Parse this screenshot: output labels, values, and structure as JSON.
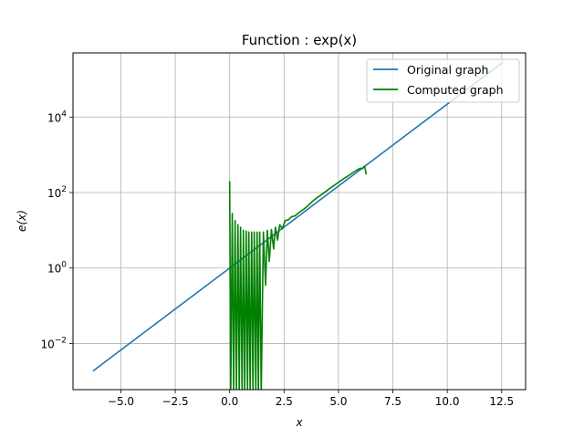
{
  "chart_data": {
    "type": "line",
    "title": "Function : exp(x)",
    "xlabel": "x",
    "ylabel": "e(x)",
    "xlim": [
      -7.2,
      13.6
    ],
    "ylim": [
      0.0006,
      500000
    ],
    "yscale": "log",
    "grid": true,
    "legend_position": "top-right",
    "x_ticks": [
      -5.0,
      -2.5,
      0.0,
      2.5,
      5.0,
      7.5,
      10.0,
      12.5
    ],
    "x_tick_labels": [
      "−5.0",
      "−2.5",
      "0.0",
      "2.5",
      "5.0",
      "7.5",
      "10.0",
      "12.5"
    ],
    "y_ticks": [
      {
        "value": 0.01,
        "base": "10",
        "exp": "−2"
      },
      {
        "value": 1,
        "base": "10",
        "exp": "0"
      },
      {
        "value": 100,
        "base": "10",
        "exp": "2"
      },
      {
        "value": 10000,
        "base": "10",
        "exp": "4"
      }
    ],
    "series": [
      {
        "name": "Original graph",
        "color": "#1f77b4",
        "x": [
          -6.28,
          -5,
          -2.5,
          0,
          2.5,
          5,
          7.5,
          10,
          12.57
        ],
        "y": [
          0.00187,
          0.00674,
          0.0821,
          1,
          12.18,
          148.4,
          1808,
          22026,
          287500
        ]
      },
      {
        "name": "Computed graph",
        "color": "#008000",
        "x": [
          0.0,
          0.05,
          0.12,
          0.18,
          0.25,
          0.31,
          0.38,
          0.44,
          0.5,
          0.57,
          0.63,
          0.69,
          0.76,
          0.82,
          0.88,
          0.94,
          1.01,
          1.07,
          1.13,
          1.2,
          1.26,
          1.32,
          1.38,
          1.45,
          1.55,
          1.65,
          1.73,
          1.82,
          1.92,
          2.02,
          2.1,
          2.2,
          2.3,
          2.42,
          2.55,
          2.7,
          2.85,
          3.0,
          3.2,
          3.4,
          3.6,
          3.8,
          4.0,
          4.3,
          4.6,
          4.9,
          5.2,
          5.5,
          5.8,
          6.0,
          6.1,
          6.2,
          6.28
        ],
        "y": [
          200,
          0.0005,
          28,
          0.0005,
          18,
          0.0005,
          14,
          0.0005,
          12,
          0.0005,
          10,
          0.0005,
          9.5,
          0.0005,
          9,
          0.0005,
          9,
          0.0005,
          9,
          0.0005,
          9,
          0.0005,
          9,
          0.0005,
          9,
          0.35,
          10,
          1.5,
          10.5,
          3.2,
          12,
          5.5,
          14,
          11,
          18,
          19,
          23,
          24,
          30,
          36,
          45,
          58,
          72,
          95,
          128,
          170,
          225,
          290,
          380,
          440,
          430,
          500,
          300
        ]
      }
    ]
  }
}
